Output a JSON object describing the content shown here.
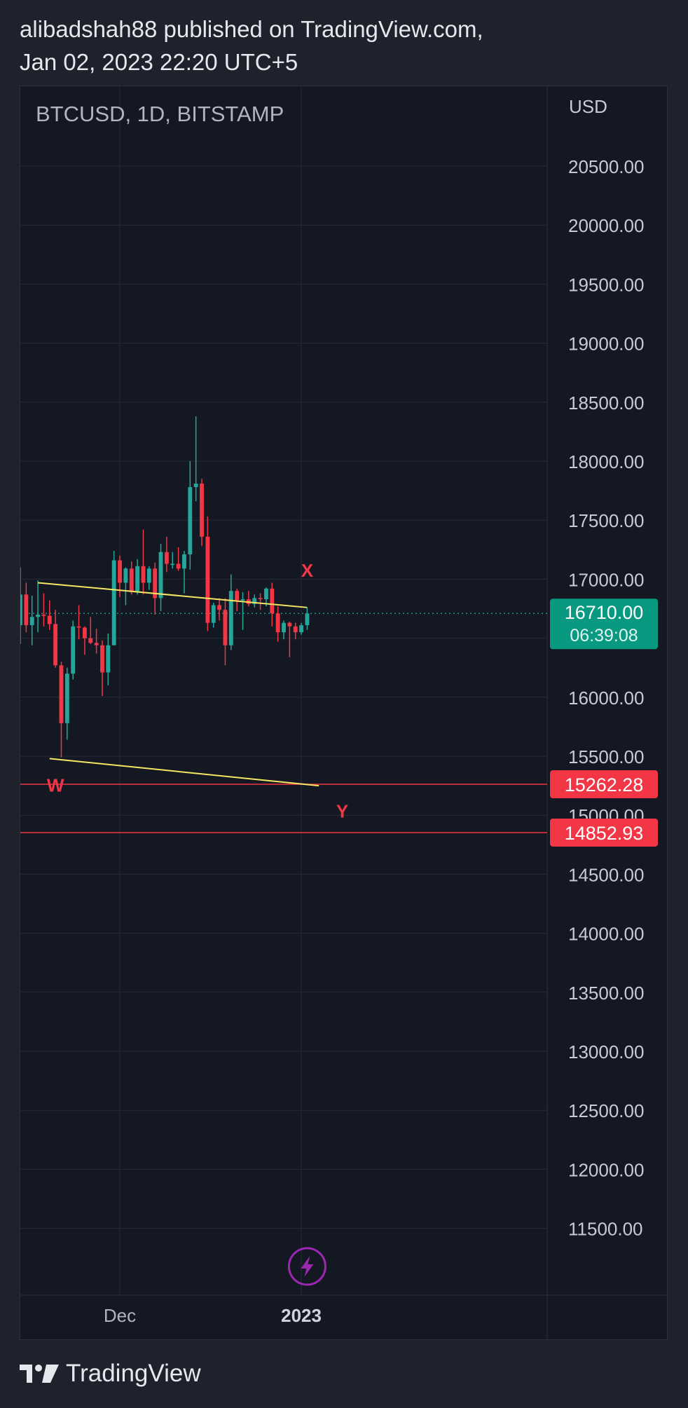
{
  "header": {
    "line1": "alibadshah88 published on TradingView.com,",
    "line2": "Jan 02, 2023 22:20 UTC+5"
  },
  "footer": {
    "brand": "TradingView",
    "logo_icon": "tradingview-logo-icon"
  },
  "colors": {
    "background": "#141823",
    "up": "#26a69a",
    "down": "#f23645",
    "trendline": "#f5e663",
    "label": "#f23645",
    "grid": "#262a35",
    "text": "#c8cbd4",
    "replay": "#9c27b0"
  },
  "chart_data": {
    "type": "candlestick",
    "symbol_label": "BTCUSD, 1D, BITSTAMP",
    "currency": "USD",
    "y_ticks": [
      20500,
      20000,
      19500,
      19000,
      18500,
      18000,
      17500,
      17000,
      16500,
      16000,
      15500,
      15000,
      14500,
      14000,
      13500,
      13000,
      12500,
      12000,
      11500
    ],
    "y_tick_labels": [
      "20500.00",
      "20000.00",
      "19500.00",
      "19000.00",
      "18500.00",
      "18000.00",
      "17500.00",
      "17000.00",
      "16500.00",
      "16000.00",
      "15500.00",
      "15000.00",
      "14500.00",
      "14000.00",
      "13500.00",
      "13000.00",
      "12500.00",
      "12000.00",
      "11500.00"
    ],
    "ylim": [
      11250,
      20600
    ],
    "x_ticks": [
      {
        "label": "Dec",
        "date": "2022-12-01",
        "bold": false
      },
      {
        "label": "2023",
        "date": "2023-01-01",
        "bold": true
      }
    ],
    "x_range": [
      "2022-11-14",
      "2023-02-12"
    ],
    "candles": [
      {
        "date": "2022-11-14",
        "open": 16610,
        "high": 17100,
        "low": 16450,
        "close": 16870
      },
      {
        "date": "2022-11-15",
        "open": 16870,
        "high": 16970,
        "low": 16550,
        "close": 16610
      },
      {
        "date": "2022-11-16",
        "open": 16610,
        "high": 16860,
        "low": 16440,
        "close": 16680
      },
      {
        "date": "2022-11-17",
        "open": 16680,
        "high": 16990,
        "low": 16550,
        "close": 16700
      },
      {
        "date": "2022-11-18",
        "open": 16700,
        "high": 16880,
        "low": 16600,
        "close": 16690
      },
      {
        "date": "2022-11-19",
        "open": 16690,
        "high": 16820,
        "low": 16570,
        "close": 16620
      },
      {
        "date": "2022-11-20",
        "open": 16620,
        "high": 16740,
        "low": 16250,
        "close": 16270
      },
      {
        "date": "2022-11-21",
        "open": 16270,
        "high": 16300,
        "low": 15490,
        "close": 15780
      },
      {
        "date": "2022-11-22",
        "open": 15780,
        "high": 16250,
        "low": 15640,
        "close": 16200
      },
      {
        "date": "2022-11-23",
        "open": 16200,
        "high": 16650,
        "low": 16150,
        "close": 16600
      },
      {
        "date": "2022-11-24",
        "open": 16600,
        "high": 16780,
        "low": 16490,
        "close": 16590
      },
      {
        "date": "2022-11-25",
        "open": 16590,
        "high": 16600,
        "low": 16360,
        "close": 16500
      },
      {
        "date": "2022-11-26",
        "open": 16500,
        "high": 16680,
        "low": 16450,
        "close": 16460
      },
      {
        "date": "2022-11-27",
        "open": 16460,
        "high": 16580,
        "low": 16370,
        "close": 16440
      },
      {
        "date": "2022-11-28",
        "open": 16440,
        "high": 16480,
        "low": 16010,
        "close": 16210
      },
      {
        "date": "2022-11-29",
        "open": 16210,
        "high": 16540,
        "low": 16100,
        "close": 16440
      },
      {
        "date": "2022-11-30",
        "open": 16440,
        "high": 17240,
        "low": 16440,
        "close": 17160
      },
      {
        "date": "2022-12-01",
        "open": 17160,
        "high": 17200,
        "low": 16850,
        "close": 16970
      },
      {
        "date": "2022-12-02",
        "open": 16970,
        "high": 17100,
        "low": 16780,
        "close": 17090
      },
      {
        "date": "2022-12-03",
        "open": 17090,
        "high": 17150,
        "low": 16870,
        "close": 16890
      },
      {
        "date": "2022-12-04",
        "open": 16890,
        "high": 17170,
        "low": 16870,
        "close": 17110
      },
      {
        "date": "2022-12-05",
        "open": 17110,
        "high": 17420,
        "low": 16870,
        "close": 16970
      },
      {
        "date": "2022-12-06",
        "open": 16970,
        "high": 17110,
        "low": 16910,
        "close": 17090
      },
      {
        "date": "2022-12-07",
        "open": 17090,
        "high": 17140,
        "low": 16700,
        "close": 16840
      },
      {
        "date": "2022-12-08",
        "open": 16840,
        "high": 17300,
        "low": 16730,
        "close": 17230
      },
      {
        "date": "2022-12-09",
        "open": 17230,
        "high": 17360,
        "low": 17060,
        "close": 17130
      },
      {
        "date": "2022-12-10",
        "open": 17130,
        "high": 17230,
        "low": 17090,
        "close": 17130
      },
      {
        "date": "2022-12-11",
        "open": 17130,
        "high": 17270,
        "low": 17070,
        "close": 17090
      },
      {
        "date": "2022-12-12",
        "open": 17090,
        "high": 17240,
        "low": 16880,
        "close": 17210
      },
      {
        "date": "2022-12-13",
        "open": 17210,
        "high": 18000,
        "low": 17080,
        "close": 17780
      },
      {
        "date": "2022-12-14",
        "open": 17780,
        "high": 18380,
        "low": 17660,
        "close": 17810
      },
      {
        "date": "2022-12-15",
        "open": 17810,
        "high": 17850,
        "low": 17280,
        "close": 17360
      },
      {
        "date": "2022-12-16",
        "open": 17360,
        "high": 17530,
        "low": 16560,
        "close": 16630
      },
      {
        "date": "2022-12-17",
        "open": 16630,
        "high": 16800,
        "low": 16590,
        "close": 16780
      },
      {
        "date": "2022-12-18",
        "open": 16780,
        "high": 16840,
        "low": 16650,
        "close": 16740
      },
      {
        "date": "2022-12-19",
        "open": 16740,
        "high": 16840,
        "low": 16270,
        "close": 16440
      },
      {
        "date": "2022-12-20",
        "open": 16440,
        "high": 17040,
        "low": 16400,
        "close": 16900
      },
      {
        "date": "2022-12-21",
        "open": 16900,
        "high": 16920,
        "low": 16730,
        "close": 16820
      },
      {
        "date": "2022-12-22",
        "open": 16820,
        "high": 16890,
        "low": 16570,
        "close": 16830
      },
      {
        "date": "2022-12-23",
        "open": 16830,
        "high": 16900,
        "low": 16770,
        "close": 16790
      },
      {
        "date": "2022-12-24",
        "open": 16790,
        "high": 16870,
        "low": 16760,
        "close": 16840
      },
      {
        "date": "2022-12-25",
        "open": 16840,
        "high": 16880,
        "low": 16740,
        "close": 16830
      },
      {
        "date": "2022-12-26",
        "open": 16830,
        "high": 16930,
        "low": 16770,
        "close": 16920
      },
      {
        "date": "2022-12-27",
        "open": 16920,
        "high": 16970,
        "low": 16600,
        "close": 16710
      },
      {
        "date": "2022-12-28",
        "open": 16710,
        "high": 16770,
        "low": 16470,
        "close": 16550
      },
      {
        "date": "2022-12-29",
        "open": 16550,
        "high": 16650,
        "low": 16490,
        "close": 16630
      },
      {
        "date": "2022-12-30",
        "open": 16630,
        "high": 16640,
        "low": 16340,
        "close": 16600
      },
      {
        "date": "2022-12-31",
        "open": 16600,
        "high": 16630,
        "low": 16490,
        "close": 16550
      },
      {
        "date": "2023-01-01",
        "open": 16550,
        "high": 16630,
        "low": 16530,
        "close": 16610
      },
      {
        "date": "2023-01-02",
        "open": 16610,
        "high": 16760,
        "low": 16570,
        "close": 16710
      }
    ],
    "trendlines": [
      {
        "from": {
          "date": "2022-11-17",
          "price": 16970
        },
        "to": {
          "date": "2023-01-02",
          "price": 16760
        }
      },
      {
        "from": {
          "date": "2022-11-19",
          "price": 15480
        },
        "to": {
          "date": "2023-01-04",
          "price": 15250
        }
      }
    ],
    "horizontal_lines": [
      {
        "price": 15262.28,
        "label": "15262.28"
      },
      {
        "price": 14852.93,
        "label": "14852.93"
      }
    ],
    "annotations": [
      {
        "text": "X",
        "date": "2023-01-02",
        "price": 17020
      },
      {
        "text": "W",
        "date": "2022-11-20",
        "price": 15200
      },
      {
        "text": "Y",
        "date": "2023-01-08",
        "price": 14980
      }
    ],
    "last_price": {
      "price": 16710,
      "label": "16710.00",
      "countdown": "06:39:08"
    },
    "replay_icon": "lightning-icon",
    "grid": true
  }
}
